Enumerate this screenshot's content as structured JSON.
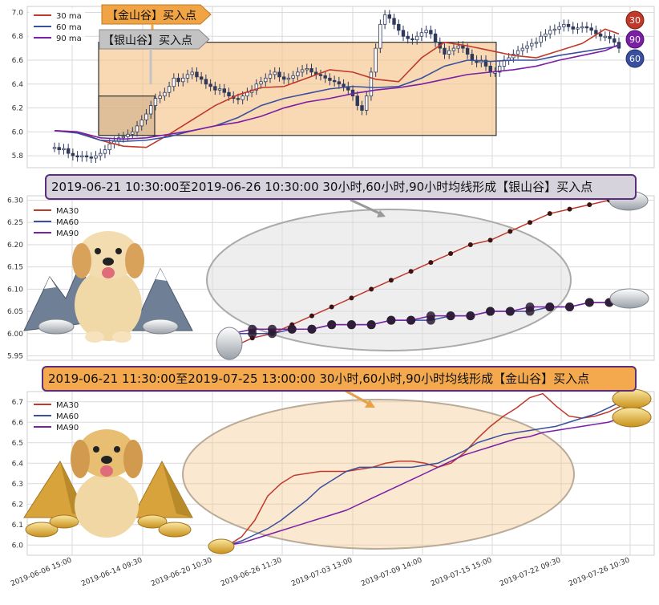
{
  "colors": {
    "ma30": "#c0392b",
    "ma60": "#3a4f9e",
    "ma90": "#7a1fa6",
    "rect_fill": "#f5c58a",
    "candle": "#2f3a5c",
    "grid": "#dadada",
    "silver_banner_bg": "#d7d3dc",
    "gold_banner_bg": "#f4a94f",
    "banner_border": "#5b2d7a"
  },
  "panel1": {
    "legend": [
      "30 ma",
      "60 ma",
      "90 ma"
    ],
    "yticks": [
      "5.8",
      "6.0",
      "6.2",
      "6.4",
      "6.6",
      "6.8",
      "7.0"
    ],
    "arrow_gold_label": "【金山谷】买入点",
    "arrow_silver_label": "【银山谷】买入点",
    "badges": [
      "30",
      "90",
      "60"
    ]
  },
  "panel2": {
    "banner": "2019-06-21 10:30:00至2019-06-26 10:30:00 30小时,60小时,90小时均线形成【银山谷】买入点",
    "legend": [
      "MA30",
      "MA60",
      "MA90"
    ],
    "yticks": [
      "5.95",
      "6.00",
      "6.05",
      "6.10",
      "6.15",
      "6.20",
      "6.25",
      "6.30"
    ]
  },
  "panel3": {
    "banner": "2019-06-21 11:30:00至2019-07-25 13:00:00 30小时,60小时,90小时均线形成【金山谷】买入点",
    "legend": [
      "MA30",
      "MA60",
      "MA90"
    ],
    "yticks": [
      "6.0",
      "6.1",
      "6.2",
      "6.3",
      "6.4",
      "6.5",
      "6.6",
      "6.7"
    ]
  },
  "xticks": [
    "2019-06-06 15:00",
    "2019-06-14 09:30",
    "2019-06-20 10:30",
    "2019-06-26 11:30",
    "2019-07-03 13:00",
    "2019-07-09 14:00",
    "2019-07-15 15:00",
    "2019-07-22 09:30",
    "2019-07-26 10:30"
  ],
  "chart_data": [
    {
      "type": "line",
      "title": "",
      "ylim": [
        5.7,
        7.05
      ],
      "grid": true,
      "legend_position": "top-left",
      "candles_close": [
        5.87,
        5.85,
        5.86,
        5.82,
        5.8,
        5.79,
        5.8,
        5.79,
        5.78,
        5.8,
        5.82,
        5.85,
        5.9,
        5.92,
        5.95,
        5.96,
        5.98,
        6.0,
        6.05,
        6.1,
        6.15,
        6.22,
        6.28,
        6.3,
        6.33,
        6.38,
        6.45,
        6.42,
        6.45,
        6.48,
        6.5,
        6.46,
        6.44,
        6.4,
        6.38,
        6.35,
        6.36,
        6.33,
        6.3,
        6.28,
        6.27,
        6.3,
        6.33,
        6.35,
        6.4,
        6.42,
        6.45,
        6.48,
        6.5,
        6.46,
        6.44,
        6.45,
        6.47,
        6.5,
        6.52,
        6.53,
        6.5,
        6.48,
        6.47,
        6.45,
        6.43,
        6.42,
        6.4,
        6.38,
        6.35,
        6.3,
        6.22,
        6.18,
        6.3,
        6.5,
        6.7,
        6.9,
        6.98,
        6.95,
        6.9,
        6.85,
        6.8,
        6.78,
        6.77,
        6.8,
        6.83,
        6.85,
        6.82,
        6.75,
        6.7,
        6.65,
        6.68,
        6.7,
        6.72,
        6.7,
        6.65,
        6.6,
        6.58,
        6.6,
        6.55,
        6.5,
        6.5,
        6.55,
        6.6,
        6.62,
        6.65,
        6.68,
        6.7,
        6.72,
        6.74,
        6.75,
        6.8,
        6.82,
        6.85,
        6.86,
        6.88,
        6.9,
        6.88,
        6.86,
        6.87,
        6.88,
        6.87,
        6.85,
        6.82,
        6.8,
        6.8,
        6.78,
        6.75,
        6.7
      ],
      "series": [
        {
          "name": "30 ma",
          "x": [
            0,
            5,
            10,
            15,
            20,
            25,
            30,
            35,
            40,
            45,
            50,
            55,
            60,
            65,
            70,
            75,
            80,
            85,
            90,
            95,
            100,
            105,
            110,
            115,
            120,
            123
          ],
          "values": [
            6.01,
            6.0,
            5.93,
            5.88,
            5.87,
            5.98,
            6.1,
            6.22,
            6.31,
            6.37,
            6.38,
            6.45,
            6.52,
            6.5,
            6.44,
            6.42,
            6.62,
            6.75,
            6.72,
            6.68,
            6.64,
            6.62,
            6.68,
            6.74,
            6.86,
            6.82
          ]
        },
        {
          "name": "60 ma",
          "x": [
            0,
            5,
            10,
            15,
            20,
            25,
            30,
            35,
            40,
            45,
            50,
            55,
            60,
            65,
            70,
            75,
            80,
            85,
            90,
            95,
            100,
            105,
            110,
            115,
            120,
            123
          ],
          "values": [
            6.01,
            5.99,
            5.93,
            5.92,
            5.93,
            5.96,
            6.01,
            6.05,
            6.12,
            6.22,
            6.28,
            6.32,
            6.36,
            6.38,
            6.37,
            6.38,
            6.45,
            6.55,
            6.6,
            6.59,
            6.6,
            6.6,
            6.64,
            6.67,
            6.7,
            6.72
          ]
        },
        {
          "name": "90 ma",
          "x": [
            0,
            5,
            10,
            15,
            20,
            25,
            30,
            35,
            40,
            45,
            50,
            55,
            60,
            65,
            70,
            75,
            80,
            85,
            90,
            95,
            100,
            105,
            110,
            115,
            120,
            123
          ],
          "values": [
            6.01,
            6.0,
            5.95,
            5.94,
            5.95,
            5.98,
            6.01,
            6.05,
            6.08,
            6.13,
            6.2,
            6.25,
            6.28,
            6.32,
            6.35,
            6.37,
            6.4,
            6.44,
            6.48,
            6.5,
            6.52,
            6.55,
            6.6,
            6.64,
            6.68,
            6.73
          ]
        }
      ],
      "rectangles": [
        {
          "label": "【金山谷】买入点",
          "x_range": [
            14,
            92
          ],
          "y_range": [
            5.97,
            6.75
          ]
        },
        {
          "label": "【银山谷】买入点",
          "x_range": [
            14,
            25
          ],
          "y_range": [
            5.97,
            6.3
          ]
        }
      ]
    },
    {
      "type": "line",
      "title": "2019-06-21 10:30:00至2019-06-26 10:30:00 30小时,60小时,90小时均线形成【银山谷】买入点",
      "ylim": [
        5.94,
        6.31
      ],
      "grid": true,
      "legend_position": "top-left",
      "x": [
        0,
        1,
        2,
        3,
        4,
        5,
        6,
        7,
        8,
        9,
        10,
        11,
        12,
        13,
        14,
        15,
        16,
        17,
        18,
        19
      ],
      "series": [
        {
          "name": "MA30",
          "values": [
            5.97,
            5.99,
            6.0,
            6.02,
            6.04,
            6.06,
            6.08,
            6.1,
            6.12,
            6.14,
            6.16,
            6.18,
            6.2,
            6.21,
            6.23,
            6.25,
            6.27,
            6.28,
            6.29,
            6.3
          ]
        },
        {
          "name": "MA60",
          "values": [
            6.0,
            6.0,
            6.0,
            6.01,
            6.01,
            6.02,
            6.02,
            6.02,
            6.03,
            6.03,
            6.03,
            6.04,
            6.04,
            6.05,
            6.05,
            6.05,
            6.06,
            6.06,
            6.07,
            6.07
          ]
        },
        {
          "name": "MA90",
          "values": [
            6.0,
            6.01,
            6.01,
            6.01,
            6.01,
            6.02,
            6.02,
            6.02,
            6.03,
            6.03,
            6.04,
            6.04,
            6.04,
            6.05,
            6.05,
            6.06,
            6.06,
            6.06,
            6.07,
            6.07
          ]
        }
      ]
    },
    {
      "type": "line",
      "title": "2019-06-21 11:30:00至2019-07-25 13:00:00 30小时,60小时,90小时均线形成【金山谷】买入点",
      "ylim": [
        5.95,
        6.75
      ],
      "grid": true,
      "legend_position": "top-left",
      "x": [
        0,
        4,
        8,
        12,
        16,
        20,
        24,
        28,
        32,
        36,
        40,
        44,
        48,
        52,
        56,
        60,
        64,
        68,
        72,
        76,
        80,
        84,
        88,
        92,
        96,
        100,
        104,
        108,
        112,
        116,
        120
      ],
      "series": [
        {
          "name": "MA30",
          "values": [
            6.0,
            6.04,
            6.12,
            6.24,
            6.3,
            6.34,
            6.35,
            6.36,
            6.36,
            6.36,
            6.37,
            6.38,
            6.4,
            6.41,
            6.41,
            6.4,
            6.38,
            6.4,
            6.45,
            6.52,
            6.58,
            6.63,
            6.67,
            6.72,
            6.74,
            6.68,
            6.63,
            6.62,
            6.63,
            6.65,
            6.68
          ]
        },
        {
          "name": "MA60",
          "values": [
            6.0,
            6.02,
            6.05,
            6.08,
            6.12,
            6.17,
            6.22,
            6.28,
            6.32,
            6.36,
            6.38,
            6.38,
            6.38,
            6.38,
            6.38,
            6.39,
            6.4,
            6.43,
            6.46,
            6.5,
            6.52,
            6.54,
            6.55,
            6.56,
            6.57,
            6.58,
            6.6,
            6.62,
            6.64,
            6.67,
            6.7
          ]
        },
        {
          "name": "MA90",
          "values": [
            6.0,
            6.01,
            6.03,
            6.05,
            6.07,
            6.09,
            6.11,
            6.13,
            6.15,
            6.17,
            6.2,
            6.23,
            6.26,
            6.29,
            6.32,
            6.35,
            6.38,
            6.41,
            6.44,
            6.46,
            6.48,
            6.5,
            6.52,
            6.53,
            6.55,
            6.56,
            6.57,
            6.58,
            6.59,
            6.6,
            6.62
          ]
        }
      ]
    }
  ]
}
